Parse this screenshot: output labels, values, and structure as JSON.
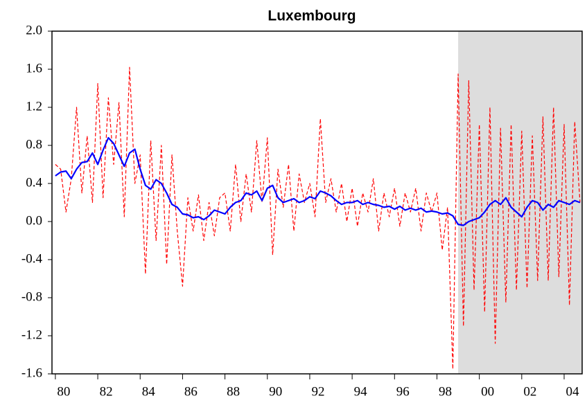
{
  "chart_data": {
    "type": "line",
    "title": "Luxembourg",
    "x": [
      1980,
      1980.25,
      1980.5,
      1980.75,
      1981,
      1981.25,
      1981.5,
      1981.75,
      1982,
      1982.25,
      1982.5,
      1982.75,
      1983,
      1983.25,
      1983.5,
      1983.75,
      1984,
      1984.25,
      1984.5,
      1984.75,
      1985,
      1985.25,
      1985.5,
      1985.75,
      1986,
      1986.25,
      1986.5,
      1986.75,
      1987,
      1987.25,
      1987.5,
      1987.75,
      1988,
      1988.25,
      1988.5,
      1988.75,
      1989,
      1989.25,
      1989.5,
      1989.75,
      1990,
      1990.25,
      1990.5,
      1990.75,
      1991,
      1991.25,
      1991.5,
      1991.75,
      1992,
      1992.25,
      1992.5,
      1992.75,
      1993,
      1993.25,
      1993.5,
      1993.75,
      1994,
      1994.25,
      1994.5,
      1994.75,
      1995,
      1995.25,
      1995.5,
      1995.75,
      1996,
      1996.25,
      1996.5,
      1996.75,
      1997,
      1997.25,
      1997.5,
      1997.75,
      1998,
      1998.25,
      1998.5,
      1998.75,
      1999,
      1999.25,
      1999.5,
      1999.75,
      2000,
      2000.25,
      2000.5,
      2000.75,
      2001,
      2001.25,
      2001.5,
      2001.75,
      2002,
      2002.25,
      2002.5,
      2002.75,
      2003,
      2003.25,
      2003.5,
      2003.75,
      2004,
      2004.25,
      2004.5,
      2004.75
    ],
    "series": [
      {
        "color": "#ff0000",
        "dashed": true,
        "width": 1.2,
        "values": [
          0.6,
          0.55,
          0.1,
          0.45,
          1.2,
          0.3,
          0.9,
          0.2,
          1.45,
          0.25,
          1.3,
          0.6,
          1.25,
          0.05,
          1.62,
          0.4,
          0.7,
          -0.55,
          0.85,
          -0.2,
          0.8,
          -0.45,
          0.7,
          -0.1,
          -0.68,
          0.25,
          -0.1,
          0.28,
          -0.2,
          0.2,
          -0.15,
          0.25,
          0.3,
          -0.1,
          0.6,
          0.0,
          0.5,
          0.1,
          0.85,
          0.2,
          0.88,
          -0.35,
          0.55,
          0.15,
          0.6,
          -0.1,
          0.5,
          0.2,
          0.4,
          0.05,
          1.08,
          0.2,
          0.45,
          0.1,
          0.4,
          0.0,
          0.35,
          -0.05,
          0.3,
          0.1,
          0.45,
          -0.1,
          0.3,
          0.05,
          0.35,
          -0.05,
          0.3,
          0.1,
          0.35,
          -0.1,
          0.3,
          0.1,
          0.3,
          -0.3,
          0.15,
          -1.55,
          1.55,
          -1.1,
          1.48,
          -0.72,
          1.02,
          -0.95,
          1.2,
          -1.28,
          0.98,
          -0.85,
          1.02,
          -0.72,
          0.95,
          -0.7,
          0.9,
          -0.62,
          1.1,
          -0.62,
          1.2,
          -0.58,
          1.02,
          -0.88,
          1.05,
          0.2
        ]
      },
      {
        "color": "#0000ff",
        "dashed": false,
        "width": 2.2,
        "values": [
          0.48,
          0.52,
          0.53,
          0.45,
          0.55,
          0.62,
          0.63,
          0.72,
          0.6,
          0.75,
          0.88,
          0.82,
          0.7,
          0.58,
          0.72,
          0.76,
          0.55,
          0.38,
          0.34,
          0.44,
          0.4,
          0.3,
          0.18,
          0.15,
          0.08,
          0.07,
          0.04,
          0.05,
          0.02,
          0.06,
          0.12,
          0.1,
          0.08,
          0.15,
          0.2,
          0.22,
          0.3,
          0.28,
          0.32,
          0.22,
          0.35,
          0.38,
          0.25,
          0.2,
          0.22,
          0.24,
          0.2,
          0.22,
          0.26,
          0.24,
          0.32,
          0.3,
          0.27,
          0.22,
          0.18,
          0.2,
          0.2,
          0.22,
          0.18,
          0.2,
          0.18,
          0.17,
          0.15,
          0.16,
          0.13,
          0.16,
          0.12,
          0.14,
          0.12,
          0.14,
          0.1,
          0.11,
          0.1,
          0.08,
          0.09,
          0.06,
          -0.03,
          -0.04,
          0.0,
          0.02,
          0.04,
          0.1,
          0.18,
          0.22,
          0.18,
          0.25,
          0.15,
          0.1,
          0.05,
          0.15,
          0.22,
          0.2,
          0.12,
          0.18,
          0.15,
          0.22,
          0.2,
          0.18,
          0.22,
          0.2
        ]
      }
    ],
    "xlim": [
      1979.84,
      2004.85
    ],
    "xticks": [
      {
        "value": 1980,
        "label": "80"
      },
      {
        "value": 1982,
        "label": "82"
      },
      {
        "value": 1984,
        "label": "84"
      },
      {
        "value": 1986,
        "label": "86"
      },
      {
        "value": 1988,
        "label": "88"
      },
      {
        "value": 1990,
        "label": "90"
      },
      {
        "value": 1992,
        "label": "92"
      },
      {
        "value": 1994,
        "label": "94"
      },
      {
        "value": 1996,
        "label": "96"
      },
      {
        "value": 1998,
        "label": "98"
      },
      {
        "value": 2000,
        "label": "00"
      },
      {
        "value": 2002,
        "label": "02"
      },
      {
        "value": 2004,
        "label": "04"
      }
    ],
    "ylim": [
      -1.6,
      2.0
    ],
    "yticks": [
      {
        "value": -1.6,
        "label": "-1.6"
      },
      {
        "value": -1.2,
        "label": "-1.2"
      },
      {
        "value": -0.8,
        "label": "-0.8"
      },
      {
        "value": -0.4,
        "label": "-0.4"
      },
      {
        "value": 0,
        "label": "0.0"
      },
      {
        "value": 0.4,
        "label": "0.4"
      },
      {
        "value": 0.8,
        "label": "0.8"
      },
      {
        "value": 1.2,
        "label": "1.2"
      },
      {
        "value": 1.6,
        "label": "1.6"
      },
      {
        "value": 2.0,
        "label": "2.0"
      }
    ],
    "shade": [
      1999.0,
      2004.85
    ],
    "shade_color": "#dddddd"
  }
}
